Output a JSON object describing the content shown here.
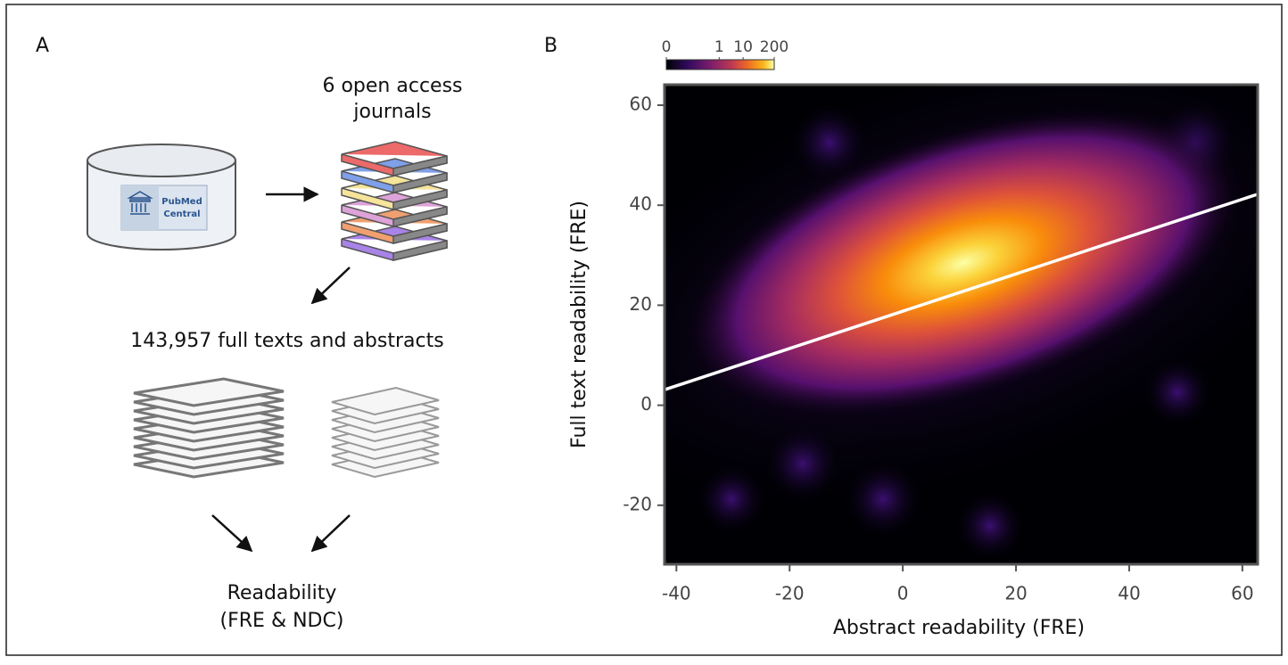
{
  "panel_a": {
    "label": "A",
    "database_label": [
      "PubMed",
      "Central"
    ],
    "journals_label": [
      "6 open access",
      "journals"
    ],
    "corpus_label": "143,957 full texts and abstracts",
    "output_label": [
      "Readability",
      "(FRE & NDC)"
    ]
  },
  "chart_data": {
    "type": "density",
    "panel_label": "B",
    "xlabel": "Abstract readability (FRE)",
    "ylabel": "Full text readability (FRE)",
    "xlim": [
      -42.1,
      62.7
    ],
    "ylim": [
      -31.8,
      64.1
    ],
    "xticks": [
      -40,
      -20,
      0,
      20,
      40,
      60
    ],
    "yticks": [
      -20,
      0,
      20,
      40,
      60
    ],
    "fit_line": {
      "color": "#ffffff",
      "x": [
        -42.1,
        62.7
      ],
      "y": [
        3.1,
        42.2
      ]
    },
    "colorbar": {
      "scale": "symlog",
      "lim": [
        0,
        200
      ],
      "ticks": [
        0,
        1,
        10,
        200
      ],
      "colormap": "inferno"
    }
  }
}
